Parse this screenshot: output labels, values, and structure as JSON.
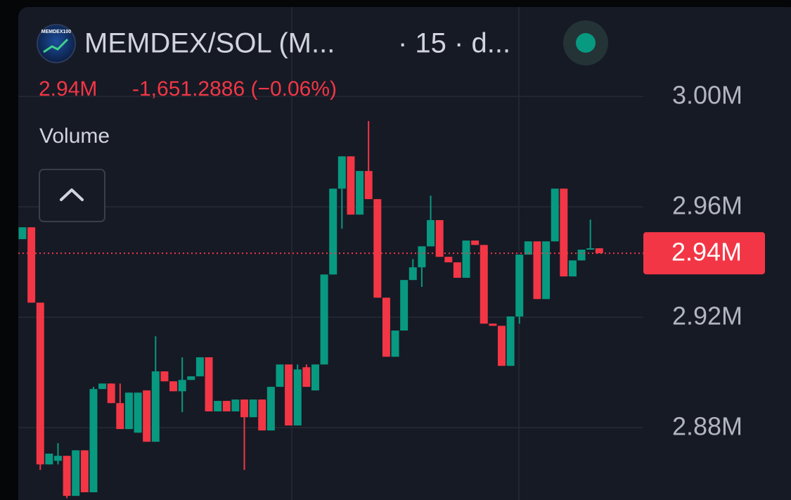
{
  "chart_data": {
    "type": "candlestick",
    "logo_text": "MEMDEX100",
    "title": "MEMDEX/SOL (M...",
    "interval": "· 15 · d...",
    "price_header": "2.94M",
    "change_text": "-1,651.2886 (−0.06%)",
    "indicator_label": "Volume",
    "up_color": "#089981",
    "down_color": "#f23645",
    "ylim": [
      2853800,
      3032400
    ],
    "yticks": [
      {
        "value": 3000000,
        "label": "3.00M"
      },
      {
        "value": 2960000,
        "label": "2.96M"
      },
      {
        "value": 2920000,
        "label": "2.92M"
      },
      {
        "value": 2880000,
        "label": "2.88M"
      }
    ],
    "grid": true,
    "last_price": 2943200,
    "last_price_label": "2.94M",
    "open": [
      2948300,
      2952600,
      2925300,
      2866700,
      2868000,
      2869800,
      2855300,
      2871800,
      2856600,
      2894000,
      2896000,
      2888900,
      2879500,
      2878200,
      2893500,
      2874900,
      2900400,
      2896800,
      2893200,
      2897300,
      2898600,
      2905500,
      2885900,
      2889700,
      2885900,
      2890200,
      2883800,
      2890200,
      2879000,
      2894800,
      2902900,
      2880800,
      2901900,
      2893500,
      2902900,
      2935500,
      2966600,
      2978300,
      2957200,
      2973000,
      2962800,
      2927100,
      2905700,
      2915200,
      2933500,
      2938100,
      2945700,
      2955200,
      2941900,
      2939900,
      2934300,
      2947800,
      2946200,
      2917700,
      2916900,
      2902400,
      2920300,
      2942700,
      2947500,
      2926600,
      2947500,
      2966600,
      2934800,
      2940600,
      2944500,
      2945000
    ],
    "high": [
      2952600,
      2952600,
      2925300,
      2870600,
      2874400,
      2869800,
      2871800,
      2871800,
      2894800,
      2896000,
      2896000,
      2896000,
      2892700,
      2892700,
      2893500,
      2913100,
      2900400,
      2896800,
      2905500,
      2898600,
      2905500,
      2905500,
      2889700,
      2889700,
      2890200,
      2890200,
      2890200,
      2890200,
      2894800,
      2902900,
      2902900,
      2902900,
      2902900,
      2902900,
      2935500,
      2966600,
      2978300,
      2978300,
      2973000,
      2991100,
      2962800,
      2927100,
      2915200,
      2933500,
      2941100,
      2945700,
      2964100,
      2955200,
      2941900,
      2939900,
      2947800,
      2947800,
      2946200,
      2917700,
      2916900,
      2920300,
      2942700,
      2947500,
      2947500,
      2947500,
      2966600,
      2966600,
      2940600,
      2944500,
      2955400,
      2945000
    ],
    "low": [
      2948300,
      2925300,
      2864700,
      2866700,
      2866700,
      2854500,
      2855300,
      2856600,
      2856600,
      2894000,
      2888900,
      2879500,
      2879500,
      2878200,
      2874900,
      2874900,
      2896800,
      2893200,
      2885600,
      2897300,
      2898600,
      2885900,
      2885900,
      2885900,
      2885900,
      2864700,
      2883800,
      2879000,
      2879000,
      2894800,
      2880800,
      2880800,
      2894800,
      2893500,
      2902900,
      2935500,
      2952100,
      2957200,
      2957200,
      2962800,
      2927100,
      2905700,
      2905700,
      2915200,
      2933500,
      2931000,
      2945700,
      2941900,
      2939900,
      2934300,
      2934300,
      2946200,
      2917700,
      2916900,
      2902400,
      2902400,
      2917700,
      2942700,
      2926600,
      2926600,
      2947500,
      2934800,
      2934800,
      2940600,
      2944500,
      2943200
    ],
    "close": [
      2952600,
      2925300,
      2866700,
      2870600,
      2869800,
      2855300,
      2871800,
      2856600,
      2894000,
      2896000,
      2888900,
      2879500,
      2892700,
      2892700,
      2874900,
      2900400,
      2896800,
      2893200,
      2897300,
      2898600,
      2905500,
      2885900,
      2889700,
      2885900,
      2890200,
      2883800,
      2890200,
      2879000,
      2894800,
      2902900,
      2880800,
      2901100,
      2894800,
      2902900,
      2935500,
      2966600,
      2978300,
      2957200,
      2973000,
      2962800,
      2927100,
      2905700,
      2915200,
      2933500,
      2938100,
      2945700,
      2955200,
      2941900,
      2939900,
      2934300,
      2947800,
      2946200,
      2917700,
      2916900,
      2902400,
      2920300,
      2942700,
      2947500,
      2926600,
      2947500,
      2966600,
      2934800,
      2940600,
      2944500,
      2945000,
      2943200
    ]
  }
}
